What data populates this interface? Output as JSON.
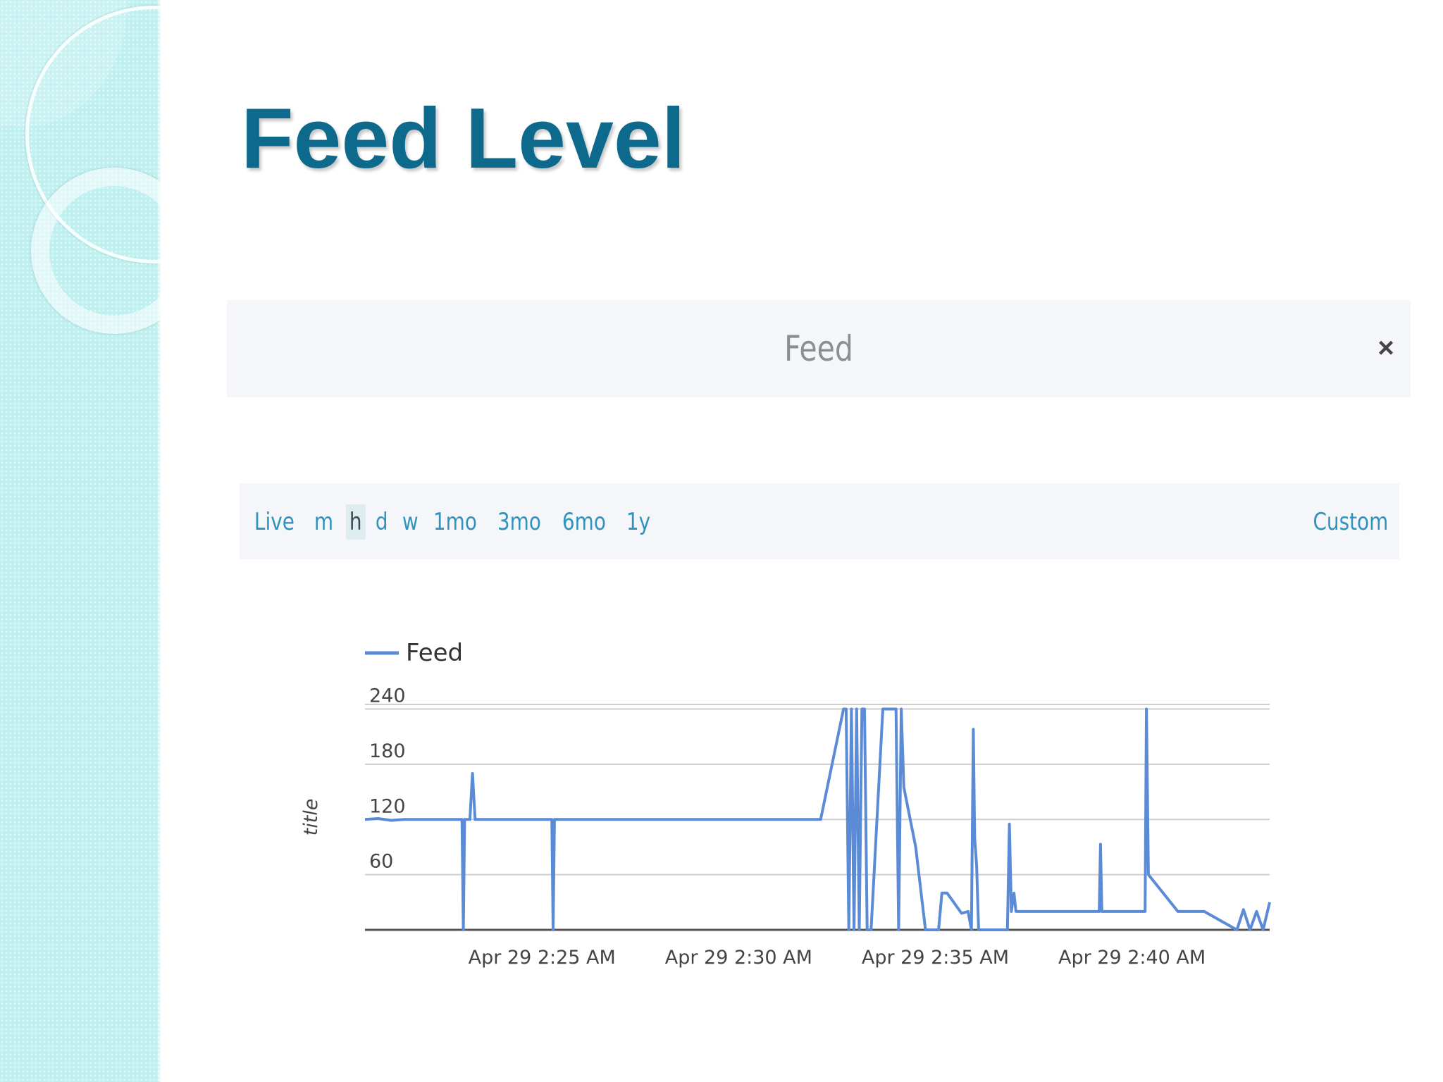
{
  "slide": {
    "title": "Feed Level"
  },
  "modal": {
    "title": "Feed",
    "close_symbol": "×"
  },
  "range_selector": {
    "options": [
      "Live",
      "m",
      "h",
      "d",
      "w",
      "1mo",
      "3mo",
      "6mo",
      "1y"
    ],
    "selected": "h",
    "custom_label": "Custom"
  },
  "colors": {
    "title": "#0e6a8c",
    "link": "#2f93bd",
    "series": "#5b8bd6",
    "panel": "#f5f6fa",
    "left_band": "#bff0f0"
  },
  "chart_data": {
    "type": "line",
    "title": "",
    "ylabel": "title",
    "xlabel": "",
    "legend": {
      "position": "top-left",
      "entries": [
        "Feed"
      ]
    },
    "grid": true,
    "ylim": [
      0,
      245
    ],
    "yticks": [
      60,
      120,
      180,
      240
    ],
    "xlim": [
      "2:20:30",
      "2:43:30"
    ],
    "xticks": [
      "Apr 29 2:25 AM",
      "Apr 29 2:30 AM",
      "Apr 29 2:35 AM",
      "Apr 29 2:40 AM"
    ],
    "xtick_values": [
      "2:25:00",
      "2:30:00",
      "2:35:00",
      "2:40:00"
    ],
    "series": [
      {
        "name": "Feed",
        "color": "#5b8bd6",
        "points": [
          [
            "2:20:30",
            120
          ],
          [
            "2:20:50",
            121
          ],
          [
            "2:21:10",
            119
          ],
          [
            "2:21:30",
            120
          ],
          [
            "2:22:25",
            120
          ],
          [
            "2:22:58",
            120
          ],
          [
            "2:23:00",
            0
          ],
          [
            "2:23:02",
            120
          ],
          [
            "2:23:10",
            120
          ],
          [
            "2:23:14",
            170
          ],
          [
            "2:23:18",
            120
          ],
          [
            "2:25:15",
            120
          ],
          [
            "2:25:17",
            0
          ],
          [
            "2:25:19",
            120
          ],
          [
            "2:32:05",
            120
          ],
          [
            "2:32:40",
            240
          ],
          [
            "2:32:44",
            240
          ],
          [
            "2:32:48",
            0
          ],
          [
            "2:32:52",
            240
          ],
          [
            "2:32:56",
            0
          ],
          [
            "2:33:00",
            240
          ],
          [
            "2:33:04",
            0
          ],
          [
            "2:33:08",
            240
          ],
          [
            "2:33:12",
            240
          ],
          [
            "2:33:16",
            0
          ],
          [
            "2:33:22",
            0
          ],
          [
            "2:33:40",
            240
          ],
          [
            "2:34:00",
            240
          ],
          [
            "2:34:04",
            0
          ],
          [
            "2:34:08",
            240
          ],
          [
            "2:34:12",
            155
          ],
          [
            "2:34:30",
            90
          ],
          [
            "2:34:45",
            0
          ],
          [
            "2:35:05",
            0
          ],
          [
            "2:35:10",
            40
          ],
          [
            "2:35:18",
            40
          ],
          [
            "2:35:40",
            18
          ],
          [
            "2:35:50",
            20
          ],
          [
            "2:35:55",
            0
          ],
          [
            "2:35:58",
            218
          ],
          [
            "2:36:00",
            100
          ],
          [
            "2:36:03",
            70
          ],
          [
            "2:36:06",
            0
          ],
          [
            "2:36:50",
            0
          ],
          [
            "2:36:53",
            115
          ],
          [
            "2:36:56",
            20
          ],
          [
            "2:37:00",
            40
          ],
          [
            "2:37:03",
            20
          ],
          [
            "2:39:10",
            20
          ],
          [
            "2:39:12",
            93
          ],
          [
            "2:39:14",
            20
          ],
          [
            "2:40:20",
            20
          ],
          [
            "2:40:22",
            240
          ],
          [
            "2:40:25",
            60
          ],
          [
            "2:41:10",
            20
          ],
          [
            "2:41:50",
            20
          ],
          [
            "2:42:40",
            0
          ],
          [
            "2:42:50",
            22
          ],
          [
            "2:43:00",
            0
          ],
          [
            "2:43:10",
            20
          ],
          [
            "2:43:20",
            0
          ],
          [
            "2:43:30",
            30
          ]
        ]
      }
    ]
  }
}
